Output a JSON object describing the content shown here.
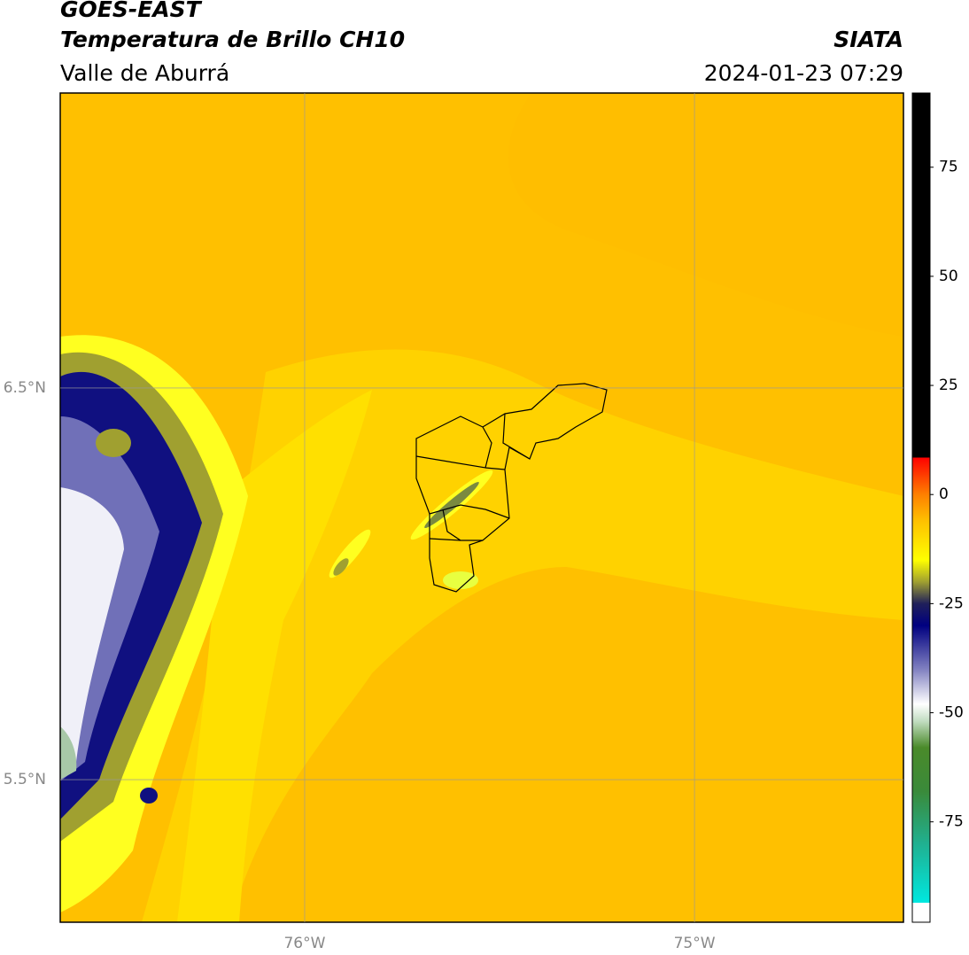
{
  "chart_data": {
    "type": "map",
    "title": "GOES-EAST",
    "subtitle": "Temperatura de Brillo CH10",
    "region": "Valle de Aburrá",
    "source": "SIATA",
    "timestamp": "2024-01-23 07:29",
    "xlim": [
      -76.627,
      -74.464
    ],
    "ylim": [
      5.136,
      7.253
    ],
    "xticks": [
      {
        "value": -76,
        "label": "76°W"
      },
      {
        "value": -75,
        "label": "75°W"
      }
    ],
    "yticks": [
      {
        "value": 6.5,
        "label": "6.5°N"
      },
      {
        "value": 5.5,
        "label": "5.5°N"
      }
    ],
    "grid": true,
    "colorbar": {
      "lim": [
        -98,
        92
      ],
      "ticks": [
        75,
        50,
        25,
        0,
        -25,
        -50,
        -75
      ],
      "stops": [
        {
          "value": -98,
          "color": "#ffffff"
        },
        {
          "value": -93.5,
          "color": "#ffffff"
        },
        {
          "value": -93.5,
          "color": "#00e8e0"
        },
        {
          "value": -80,
          "color": "#20b090"
        },
        {
          "value": -68,
          "color": "#3a8a3a"
        },
        {
          "value": -58,
          "color": "#4a8a2a"
        },
        {
          "value": -52,
          "color": "#c0dcc0"
        },
        {
          "value": -48,
          "color": "#ffffff"
        },
        {
          "value": -40,
          "color": "#8080c0"
        },
        {
          "value": -30,
          "color": "#000080"
        },
        {
          "value": -25,
          "color": "#20205a"
        },
        {
          "value": -20,
          "color": "#a0a030"
        },
        {
          "value": -15,
          "color": "#ffff00"
        },
        {
          "value": -6,
          "color": "#ffc000"
        },
        {
          "value": 0,
          "color": "#ff8000"
        },
        {
          "value": 8.5,
          "color": "#ff0000"
        },
        {
          "value": 8.5,
          "color": "#000000"
        },
        {
          "value": 92,
          "color": "#000000"
        }
      ]
    }
  }
}
